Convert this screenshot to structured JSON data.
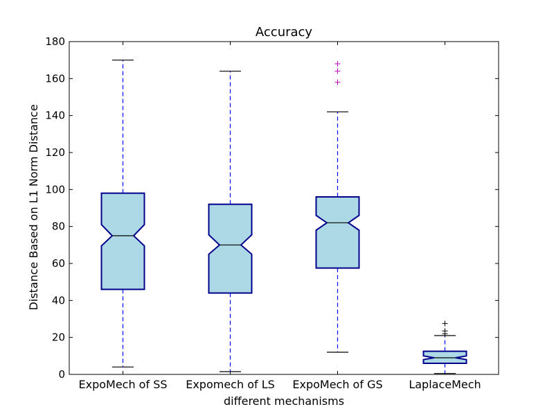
{
  "chart_data": {
    "type": "boxplot",
    "title": "Accuracy",
    "xlabel": "different mechanisms",
    "ylabel": "Distance Based on L1 Norm Distance",
    "ylim": [
      0,
      180
    ],
    "yticks": [
      0,
      20,
      40,
      60,
      80,
      100,
      120,
      140,
      160,
      180
    ],
    "grid": false,
    "notched": true,
    "colors": {
      "box_fill": "#add8e6",
      "box_edge": "#00008b",
      "whisker": "#0000ff",
      "median": "#000000",
      "outlier_magenta": "#bf00bf",
      "outlier_black": "#000000"
    },
    "categories": [
      "ExpoMech of SS",
      "Expomech of LS",
      "ExpoMech of GS",
      "LaplaceMech"
    ],
    "boxes": [
      {
        "whisker_low": 4,
        "q1": 46,
        "notch_low": 69.5,
        "median": 75,
        "notch_high": 81,
        "q3": 98,
        "whisker_high": 170,
        "outliers": [],
        "outlier_color": "#bf00bf"
      },
      {
        "whisker_low": 1.5,
        "q1": 44,
        "notch_low": 65,
        "median": 70,
        "notch_high": 75.5,
        "q3": 92,
        "whisker_high": 164,
        "outliers": [],
        "outlier_color": "#bf00bf"
      },
      {
        "whisker_low": 12,
        "q1": 57.5,
        "notch_low": 78,
        "median": 82,
        "notch_high": 86,
        "q3": 96,
        "whisker_high": 142,
        "outliers": [
          158,
          164,
          168
        ],
        "outlier_color": "#bf00bf"
      },
      {
        "whisker_low": 0.5,
        "q1": 6,
        "notch_low": 8,
        "median": 9,
        "notch_high": 10,
        "q3": 12.5,
        "whisker_high": 21,
        "outliers": [
          22,
          23.5,
          27.5
        ],
        "outlier_color": "#000000"
      }
    ]
  }
}
